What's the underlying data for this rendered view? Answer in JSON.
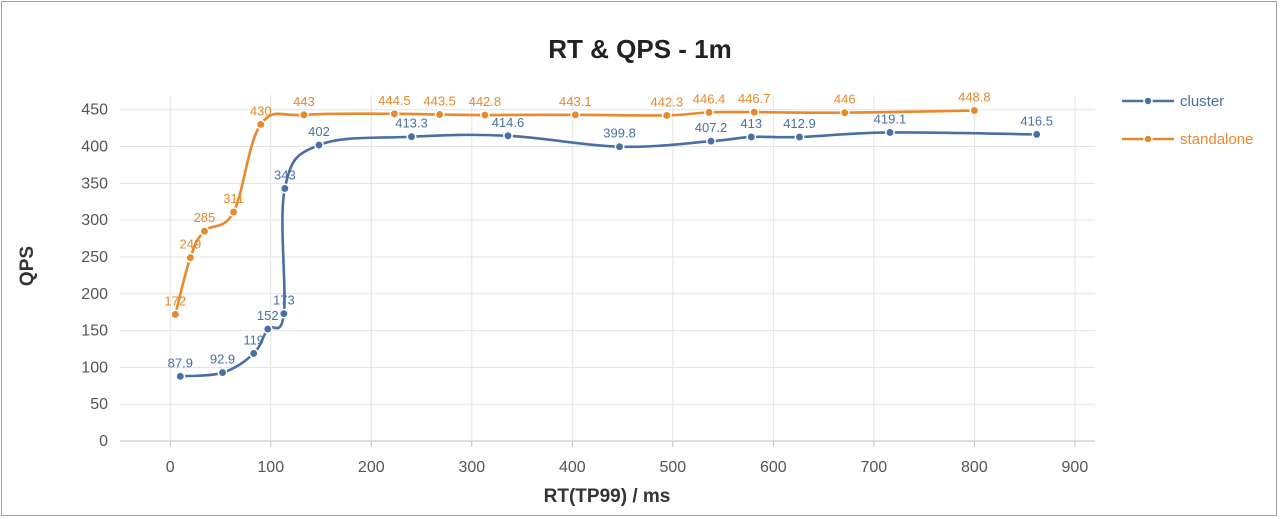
{
  "chart_data": {
    "type": "line",
    "title": "RT & QPS - 1m",
    "xlabel": "RT(TP99) / ms",
    "ylabel": "QPS",
    "xlim": [
      -50,
      920
    ],
    "ylim": [
      0,
      470
    ],
    "xticks": [
      0,
      100,
      200,
      300,
      400,
      500,
      600,
      700,
      800,
      900
    ],
    "yticks": [
      0,
      50,
      100,
      150,
      200,
      250,
      300,
      350,
      400,
      450
    ],
    "grid": true,
    "legend_position": "right",
    "series": [
      {
        "name": "cluster",
        "color": "#4a6fa5",
        "points": [
          {
            "x": 10,
            "y": 87.9,
            "label": "87.9"
          },
          {
            "x": 52,
            "y": 92.9,
            "label": "92.9"
          },
          {
            "x": 83,
            "y": 119,
            "label": "119"
          },
          {
            "x": 97,
            "y": 152,
            "label": "152"
          },
          {
            "x": 113,
            "y": 173,
            "label": "173"
          },
          {
            "x": 114,
            "y": 343,
            "label": "343"
          },
          {
            "x": 148,
            "y": 402,
            "label": "402"
          },
          {
            "x": 240,
            "y": 413.3,
            "label": "413.3"
          },
          {
            "x": 336,
            "y": 414.6,
            "label": "414.6"
          },
          {
            "x": 447,
            "y": 399.8,
            "label": "399.8"
          },
          {
            "x": 538,
            "y": 407.2,
            "label": "407.2"
          },
          {
            "x": 578,
            "y": 413,
            "label": "413"
          },
          {
            "x": 626,
            "y": 412.9,
            "label": "412.9"
          },
          {
            "x": 716,
            "y": 419.1,
            "label": "419.1"
          },
          {
            "x": 862,
            "y": 416.5,
            "label": "416.5"
          }
        ]
      },
      {
        "name": "standalone",
        "color": "#e8892c",
        "points": [
          {
            "x": 5,
            "y": 172,
            "label": "172"
          },
          {
            "x": 20,
            "y": 249,
            "label": "249"
          },
          {
            "x": 34,
            "y": 285,
            "label": "285"
          },
          {
            "x": 63,
            "y": 311,
            "label": "311"
          },
          {
            "x": 90,
            "y": 430,
            "label": "430"
          },
          {
            "x": 133,
            "y": 443,
            "label": "443"
          },
          {
            "x": 223,
            "y": 444.5,
            "label": "444.5"
          },
          {
            "x": 268,
            "y": 443.5,
            "label": "443.5"
          },
          {
            "x": 313,
            "y": 442.8,
            "label": "442.8"
          },
          {
            "x": 403,
            "y": 443.1,
            "label": "443.1"
          },
          {
            "x": 494,
            "y": 442.3,
            "label": "442.3"
          },
          {
            "x": 536,
            "y": 446.4,
            "label": "446.4"
          },
          {
            "x": 581,
            "y": 446.7,
            "label": "446.7"
          },
          {
            "x": 671,
            "y": 446,
            "label": "446"
          },
          {
            "x": 800,
            "y": 448.8,
            "label": "448.8"
          }
        ]
      }
    ]
  }
}
